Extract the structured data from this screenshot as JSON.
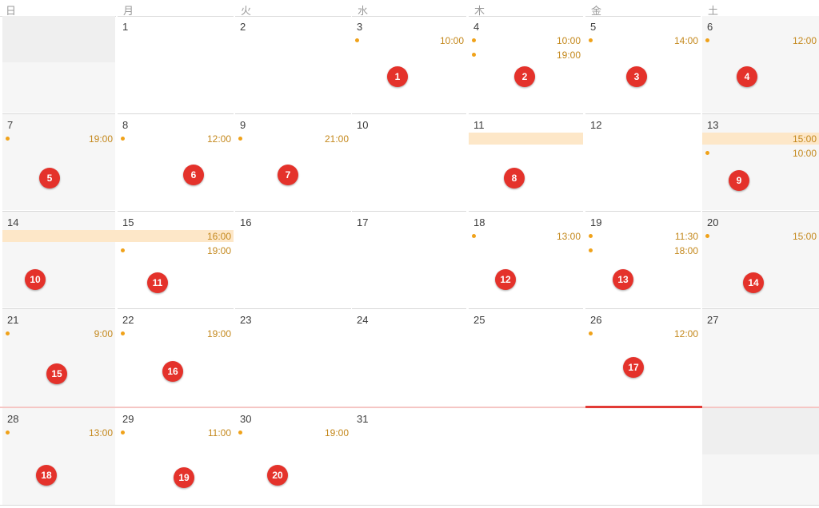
{
  "weekdays": [
    "日",
    "月",
    "火",
    "水",
    "木",
    "金",
    "土"
  ],
  "days": {
    "d1": "1",
    "d2": "2",
    "d3": "3",
    "d4": "4",
    "d5": "5",
    "d6": "6",
    "d7": "7",
    "d8": "8",
    "d9": "9",
    "d10": "10",
    "d11": "11",
    "d12": "12",
    "d13": "13",
    "d14": "14",
    "d15": "15",
    "d16": "16",
    "d17": "17",
    "d18": "18",
    "d19": "19",
    "d20": "20",
    "d21": "21",
    "d22": "22",
    "d23": "23",
    "d24": "24",
    "d25": "25",
    "d26": "26",
    "d27": "27",
    "d28": "28",
    "d29": "29",
    "d30": "30",
    "d31": "31"
  },
  "events": {
    "e3": {
      "title": "",
      "time": "10:00"
    },
    "e4a": {
      "title": "",
      "time": "10:00"
    },
    "e4b": {
      "title": "",
      "time": "19:00"
    },
    "e5": {
      "title": "",
      "time": "14:00"
    },
    "e6": {
      "title": "",
      "time": "12:00"
    },
    "e7": {
      "title": "",
      "time": "19:00"
    },
    "e8": {
      "title": "",
      "time": "12:00"
    },
    "e9": {
      "title": "",
      "time": "21:00"
    },
    "e11": {
      "title": "",
      "time": ""
    },
    "e13a": {
      "title": "",
      "time": "15:00"
    },
    "e13b": {
      "title": "",
      "time": "10:00"
    },
    "e14": {
      "title": "",
      "time": "16:00"
    },
    "e15": {
      "title": "",
      "time": "19:00"
    },
    "e18": {
      "title": "",
      "time": "13:00"
    },
    "e19a": {
      "title": "",
      "time": "11:30"
    },
    "e19b": {
      "title": "",
      "time": "18:00"
    },
    "e20": {
      "title": "",
      "time": "15:00"
    },
    "e21": {
      "title": "",
      "time": "9:00"
    },
    "e22": {
      "title": "",
      "time": "19:00"
    },
    "e26": {
      "title": "",
      "time": "12:00"
    },
    "e28": {
      "title": "",
      "time": "13:00"
    },
    "e29": {
      "title": "",
      "time": "11:00"
    },
    "e30": {
      "title": "",
      "time": "19:00"
    }
  },
  "badges": {
    "b1": "1",
    "b2": "2",
    "b3": "3",
    "b4": "4",
    "b5": "5",
    "b6": "6",
    "b7": "7",
    "b8": "8",
    "b9": "9",
    "b10": "10",
    "b11": "11",
    "b12": "12",
    "b13": "13",
    "b14": "14",
    "b15": "15",
    "b16": "16",
    "b17": "17",
    "b18": "18",
    "b19": "19",
    "b20": "20"
  },
  "colors": {
    "accent": "#e4322b",
    "event_dot": "#f0a21a",
    "event_time": "#c4881c",
    "band": "#fde7c8",
    "today": "#e23b36"
  }
}
